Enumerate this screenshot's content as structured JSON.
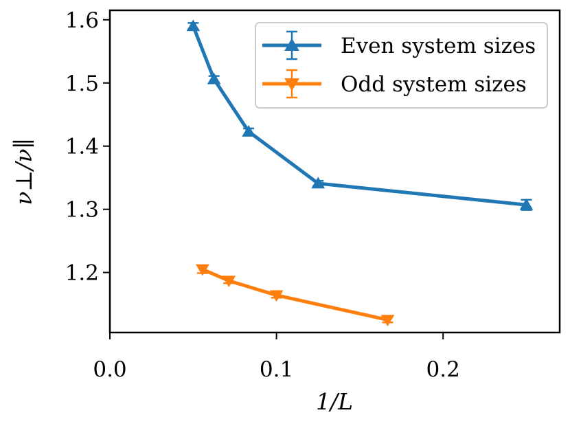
{
  "chart_data": {
    "type": "line",
    "xlabel": "1/L",
    "ylabel": "ν⊥/ν∥",
    "xlim": [
      0.0,
      0.27
    ],
    "ylim": [
      1.105,
      1.615
    ],
    "xticks": [
      0.0,
      0.1,
      0.2
    ],
    "xtick_labels": [
      "0.0",
      "0.1",
      "0.2"
    ],
    "yticks": [
      1.2,
      1.3,
      1.4,
      1.5,
      1.6
    ],
    "ytick_labels": [
      "1.2",
      "1.3",
      "1.4",
      "1.5",
      "1.6"
    ],
    "grid": false,
    "legend_position": "top-right",
    "series": [
      {
        "name": "Even system sizes",
        "color": "#1f77b4",
        "marker": "triangle-up",
        "x": [
          0.05,
          0.0625,
          0.0833,
          0.125,
          0.25
        ],
        "y": [
          1.59,
          1.506,
          1.423,
          1.341,
          1.307
        ],
        "err": [
          0.005,
          0.005,
          0.005,
          0.004,
          0.008
        ]
      },
      {
        "name": "Odd system sizes",
        "color": "#ff7f0e",
        "marker": "triangle-down",
        "x": [
          0.0556,
          0.0714,
          0.1,
          0.1667
        ],
        "y": [
          1.205,
          1.187,
          1.164,
          1.125
        ],
        "err": [
          0.006,
          0.004,
          0.004,
          0.004
        ]
      }
    ]
  }
}
